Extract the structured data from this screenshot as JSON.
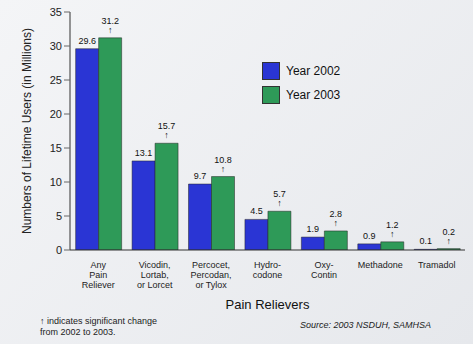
{
  "chart_data": {
    "type": "bar",
    "x_label": "Pain Relievers",
    "y_label": "Numbers of Lifetime Users (in Millions)",
    "categories": [
      "Any\nPain\nReliever",
      "Vicodin,\nLortab,\nor Lorcet",
      "Percocet,\nPercodan,\nor Tylox",
      "Hydro-\ncodone",
      "Oxy-\nContin",
      "Methadone",
      "Tramadol"
    ],
    "series": [
      {
        "name": "Year 2002",
        "color": "#2a35d4",
        "values": [
          29.6,
          13.1,
          9.7,
          4.5,
          1.9,
          0.9,
          0.1
        ]
      },
      {
        "name": "Year 2003",
        "color": "#2e9a58",
        "values": [
          31.2,
          15.7,
          10.8,
          5.7,
          2.8,
          1.2,
          0.2
        ],
        "value_labels": [
          "31.2 ↑",
          "15.7 ↑",
          "10.8 ↑",
          "5.7 ↑",
          "2.8 ↑",
          "1.2 ↑",
          "0.2 ↑"
        ]
      }
    ],
    "ylim": [
      0,
      35
    ],
    "yticks": [
      0,
      5,
      10,
      15,
      20,
      25,
      30,
      35
    ],
    "grid": false,
    "legend": "upper right",
    "data_labels": true,
    "annotations": [
      "↑ indicates significant change\nfrom 2002 to 2003.",
      "Source: 2003 NSDUH, SAMHSA"
    ]
  }
}
